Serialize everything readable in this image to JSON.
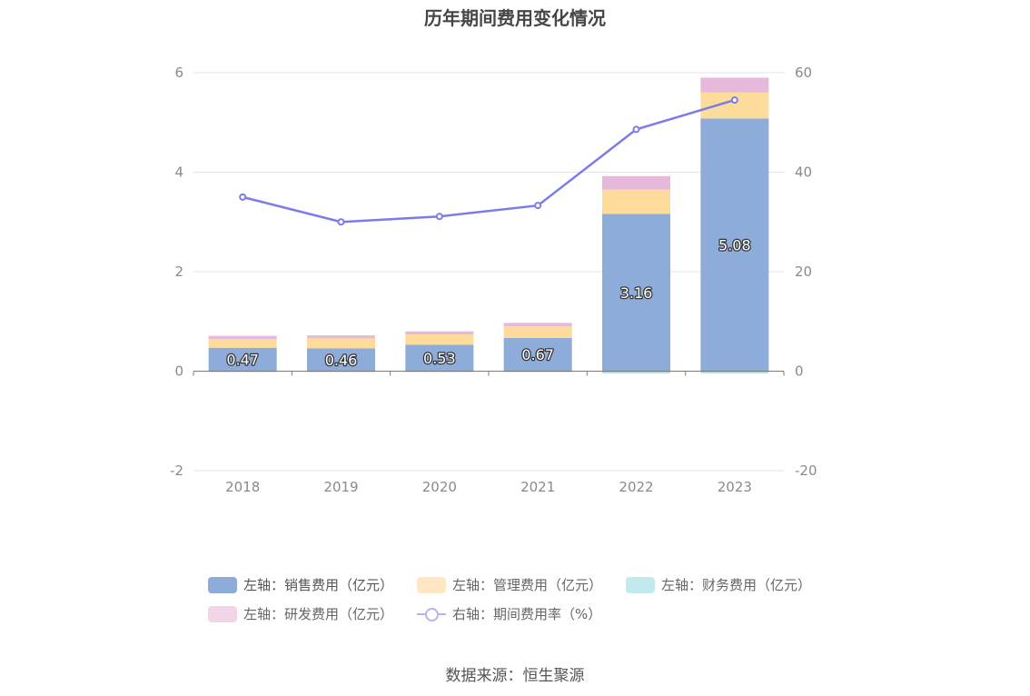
{
  "title": "历年期间费用变化情况",
  "source": "数据来源：恒生聚源",
  "colors": {
    "sales": "#8eacd9",
    "admin": "#fddb9b",
    "finance": "#9ed9dc",
    "rnd": "#e6b8dc",
    "ratio": "#7b7bea",
    "legend_sales": "#8eacd9",
    "legend_admin": "#ffe7c4",
    "legend_finance": "#c2e9eb",
    "legend_rnd": "#f3d5ea",
    "legend_ratio": "#b3b3f0"
  },
  "legend": {
    "sales": "左轴：销售费用（亿元）",
    "admin": "左轴：管理费用（亿元）",
    "finance": "左轴：财务费用（亿元）",
    "rnd": "左轴：研发费用（亿元）",
    "ratio": "右轴：期间费用率（%）"
  },
  "chart_data": {
    "type": "bar",
    "stacked": true,
    "categories": [
      "2018",
      "2019",
      "2020",
      "2021",
      "2022",
      "2023"
    ],
    "series": [
      {
        "name": "左轴：销售费用（亿元）",
        "axis": "left",
        "values": [
          0.47,
          0.46,
          0.53,
          0.67,
          3.16,
          5.08
        ],
        "labels_shown": true
      },
      {
        "name": "左轴：管理费用（亿元）",
        "axis": "left",
        "values": [
          0.18,
          0.2,
          0.21,
          0.23,
          0.49,
          0.52
        ]
      },
      {
        "name": "左轴：财务费用（亿元）",
        "axis": "left",
        "values": [
          -0.01,
          -0.01,
          -0.01,
          -0.01,
          -0.04,
          -0.04
        ]
      },
      {
        "name": "左轴：研发费用（亿元）",
        "axis": "left",
        "values": [
          0.06,
          0.06,
          0.06,
          0.07,
          0.27,
          0.3
        ]
      },
      {
        "name": "右轴：期间费用率（%）",
        "axis": "right",
        "type": "line",
        "values": [
          35.0,
          30.0,
          31.1,
          33.3,
          48.6,
          54.5
        ]
      }
    ],
    "left_axis": {
      "min": -2,
      "max": 6,
      "ticks": [
        -2,
        0,
        2,
        4,
        6
      ]
    },
    "right_axis": {
      "min": -20,
      "max": 60,
      "ticks": [
        -20,
        0,
        20,
        40,
        60
      ]
    },
    "grid": true,
    "legend_position": "bottom"
  }
}
